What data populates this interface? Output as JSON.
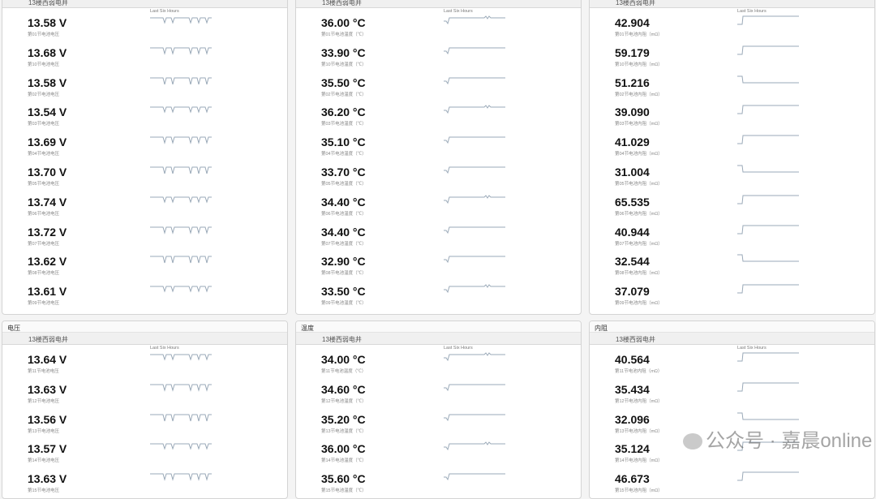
{
  "sparkline_label": "Last Six Hours",
  "station": "13楼西弱电井",
  "top": [
    {
      "type": "voltage",
      "rows": [
        {
          "value": "13.58 V",
          "label": "第01节电池电压"
        },
        {
          "value": "13.68 V",
          "label": "第10节电池电压"
        },
        {
          "value": "13.58 V",
          "label": "第02节电池电压"
        },
        {
          "value": "13.54 V",
          "label": "第03节电池电压"
        },
        {
          "value": "13.69 V",
          "label": "第04节电池电压"
        },
        {
          "value": "13.70 V",
          "label": "第05节电池电压"
        },
        {
          "value": "13.74 V",
          "label": "第06节电池电压"
        },
        {
          "value": "13.72 V",
          "label": "第07节电池电压"
        },
        {
          "value": "13.62 V",
          "label": "第08节电池电压"
        },
        {
          "value": "13.61 V",
          "label": "第09节电池电压"
        }
      ]
    },
    {
      "type": "temperature",
      "rows": [
        {
          "value": "36.00 °C",
          "label": "第01节电池温度（℃）"
        },
        {
          "value": "33.90 °C",
          "label": "第10节电池温度（℃）"
        },
        {
          "value": "35.50 °C",
          "label": "第02节电池温度（℃）"
        },
        {
          "value": "36.20 °C",
          "label": "第03节电池温度（℃）"
        },
        {
          "value": "35.10 °C",
          "label": "第04节电池温度（℃）"
        },
        {
          "value": "33.70 °C",
          "label": "第05节电池温度（℃）"
        },
        {
          "value": "34.40 °C",
          "label": "第06节电池温度（℃）"
        },
        {
          "value": "34.40 °C",
          "label": "第07节电池温度（℃）"
        },
        {
          "value": "32.90 °C",
          "label": "第08节电池温度（℃）"
        },
        {
          "value": "33.50 °C",
          "label": "第09节电池温度（℃）"
        }
      ]
    },
    {
      "type": "resistance",
      "rows": [
        {
          "value": "42.904",
          "label": "第01节电池内阻（mΩ）"
        },
        {
          "value": "59.179",
          "label": "第10节电池内阻（mΩ）"
        },
        {
          "value": "51.216",
          "label": "第02节电池内阻（mΩ）"
        },
        {
          "value": "39.090",
          "label": "第03节电池内阻（mΩ）"
        },
        {
          "value": "41.029",
          "label": "第04节电池内阻（mΩ）"
        },
        {
          "value": "31.004",
          "label": "第05节电池内阻（mΩ）"
        },
        {
          "value": "65.535",
          "label": "第06节电池内阻（mΩ）"
        },
        {
          "value": "40.944",
          "label": "第07节电池内阻（mΩ）"
        },
        {
          "value": "32.544",
          "label": "第08节电池内阻（mΩ）"
        },
        {
          "value": "37.079",
          "label": "第09节电池内阻（mΩ）"
        }
      ]
    }
  ],
  "bottom": [
    {
      "title": "电压",
      "type": "voltage",
      "rows": [
        {
          "value": "13.64 V",
          "label": "第11节电池电压"
        },
        {
          "value": "13.63 V",
          "label": "第12节电池电压"
        },
        {
          "value": "13.56 V",
          "label": "第13节电池电压"
        },
        {
          "value": "13.57 V",
          "label": "第14节电池电压"
        },
        {
          "value": "13.63 V",
          "label": "第15节电池电压"
        }
      ]
    },
    {
      "title": "温度",
      "type": "temperature",
      "rows": [
        {
          "value": "34.00 °C",
          "label": "第11节电池温度（℃）"
        },
        {
          "value": "34.60 °C",
          "label": "第12节电池温度（℃）"
        },
        {
          "value": "35.20 °C",
          "label": "第13节电池温度（℃）"
        },
        {
          "value": "36.00 °C",
          "label": "第14节电池温度（℃）"
        },
        {
          "value": "35.60 °C",
          "label": "第15节电池温度（℃）"
        }
      ]
    },
    {
      "title": "内阻",
      "type": "resistance",
      "rows": [
        {
          "value": "40.564",
          "label": "第11节电池内阻（mΩ）"
        },
        {
          "value": "35.434",
          "label": "第12节电池内阻（mΩ）"
        },
        {
          "value": "32.096",
          "label": "第13节电池内阻（mΩ）"
        },
        {
          "value": "35.124",
          "label": "第14节电池内阻（mΩ）"
        },
        {
          "value": "46.673",
          "label": "第15节电池内阻（mΩ）"
        }
      ]
    }
  ],
  "watermark": "公众号 · 嘉晨online"
}
